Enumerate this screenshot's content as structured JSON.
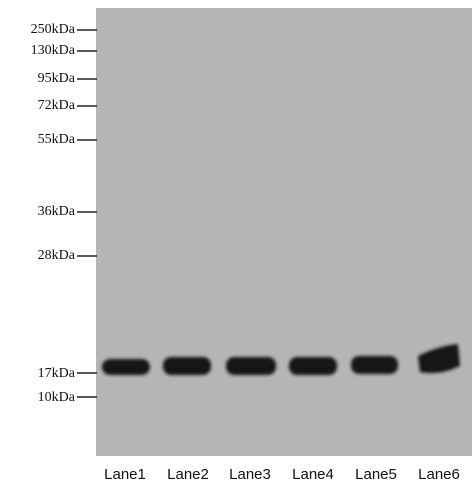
{
  "blot": {
    "markers": [
      "250kDa",
      "130kDa",
      "95kDa",
      "72kDa",
      "55kDa",
      "36kDa",
      "28kDa",
      "17kDa",
      "10kDa"
    ],
    "lanes": [
      "Lane1",
      "Lane2",
      "Lane3",
      "Lane4",
      "Lane5",
      "Lane6"
    ]
  }
}
